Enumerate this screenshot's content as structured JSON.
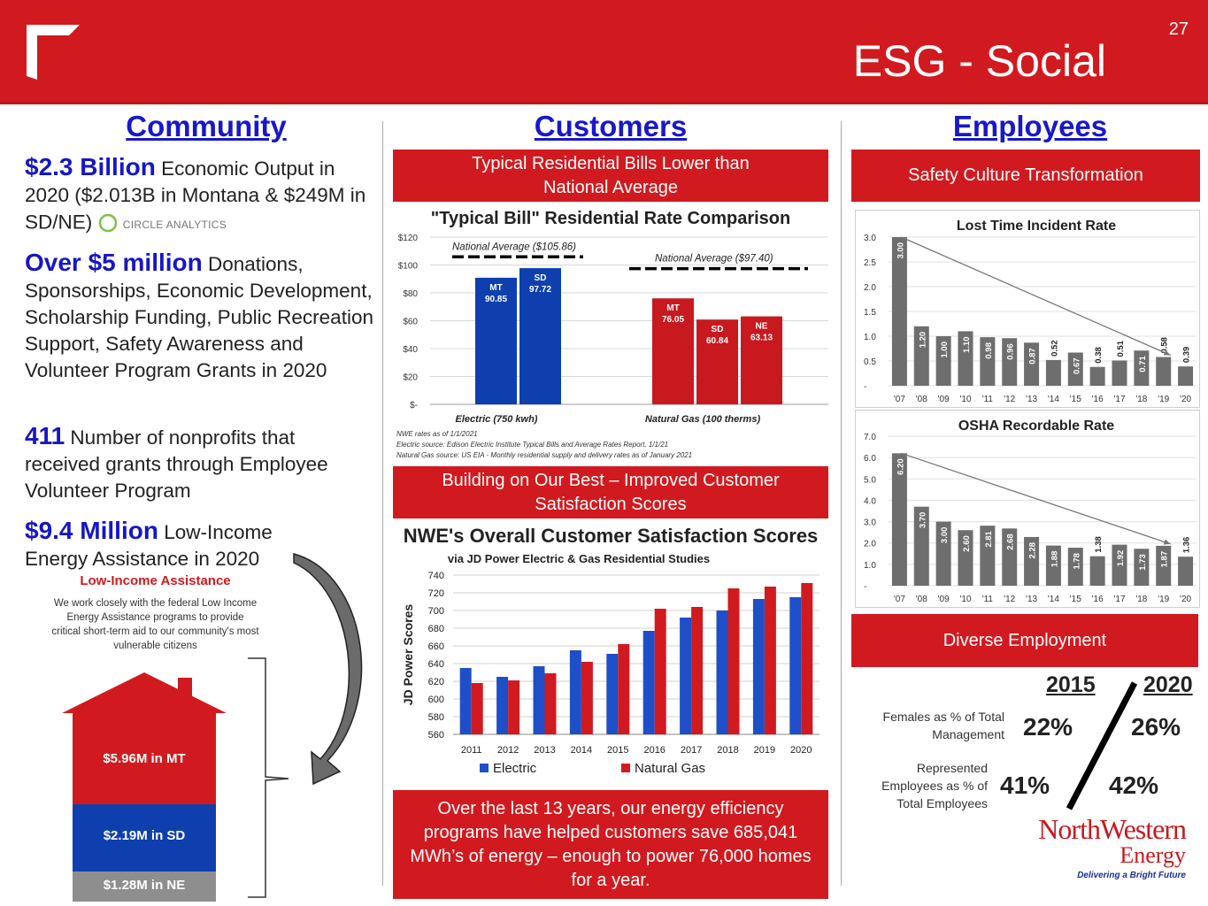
{
  "header": {
    "title": "ESG - Social",
    "page_number": "27"
  },
  "community": {
    "title": "Community",
    "items": [
      {
        "big": "$2.3 Billion",
        "text": " Economic Output in 2020 ($2.013B in Montana & $249M in SD/NE)"
      },
      {
        "big": "Over $5 million",
        "text": " Donations, Sponsorships, Economic Development, Scholarship Funding, Public Recreation Support, Safety Awareness and Volunteer Program Grants in 2020"
      },
      {
        "big": "411",
        "text": " Number of nonprofits that received grants through Employee Volunteer Program"
      },
      {
        "big": "$9.4 Million",
        "text": " Low-Income Energy Assistance in 2020"
      }
    ],
    "circle_logo_text": "CIRCLE ANALYTICS",
    "low_income": {
      "title": "Low-Income Assistance",
      "text": "We work closely with the federal Low Income Energy Assistance programs to provide critical short-term aid to our community's most vulnerable citizens",
      "mt": "$5.96M in MT",
      "sd": "$2.19M in SD",
      "ne": "$1.28M in NE"
    }
  },
  "customers": {
    "title": "Customers",
    "banner1": "Typical Residential Bills Lower than National Average",
    "banner2": "Building on Our Best – Improved Customer Satisfaction Scores",
    "banner3": "Over the last 13 years, our energy efficiency programs have helped customers save 685,041 MWh’s of energy – enough to power 76,000 homes for a year.",
    "notes": [
      "NWE rates as of 1/1/2021",
      "Electric source:  Edison Electric Institute Typical Bills and Average Rates Report, 1/1/21",
      "Natural Gas source:  US EIA - Monthly residential supply and delivery rates as of January 2021"
    ]
  },
  "employees": {
    "title": "Employees",
    "banner1": "Safety Culture Transformation",
    "banner2": "Diverse Employment",
    "diverse": {
      "year1": "2015",
      "year2": "2020",
      "row1_label": "Females as % of Total Management",
      "row1_v1": "22%",
      "row1_v2": "26%",
      "row2_label": "Represented Employees as % of Total Employees",
      "row2_v1": "41%",
      "row2_v2": "42%"
    },
    "logo": {
      "name": "NorthWestern",
      "sub": "Energy",
      "tagline": "Delivering a Bright Future"
    }
  },
  "colors": {
    "red": "#d11a1f",
    "blue": "#0f3fae",
    "gray": "#6e6e6e",
    "title_blue": "#1818c8"
  },
  "chart_data": [
    {
      "type": "bar",
      "title": "\"Typical Bill\" Residential Rate Comparison",
      "ylim": [
        0,
        120
      ],
      "yticks": [
        "$-",
        "$20",
        "$40",
        "$60",
        "$80",
        "$100",
        "$120"
      ],
      "groups": [
        {
          "name": "Electric (750 kwh)",
          "national_average": 105.86,
          "national_average_label": "National Average ($105.86)",
          "bars": [
            {
              "label": "MT",
              "value": 90.85,
              "color": "#0f3fae"
            },
            {
              "label": "SD",
              "value": 97.72,
              "color": "#0f3fae"
            }
          ]
        },
        {
          "name": "Natural Gas (100 therms)",
          "national_average": 97.4,
          "national_average_label": "National Average ($97.40)",
          "bars": [
            {
              "label": "MT",
              "value": 76.05,
              "color": "#c8191f"
            },
            {
              "label": "SD",
              "value": 60.84,
              "color": "#c8191f"
            },
            {
              "label": "NE",
              "value": 63.13,
              "color": "#c8191f"
            }
          ]
        }
      ]
    },
    {
      "type": "bar",
      "title": "NWE's Overall Customer Satisfaction Scores",
      "subtitle": "via JD Power Electric & Gas Residential Studies",
      "ylabel": "JD Power Scores",
      "ylim": [
        560,
        740
      ],
      "yticks": [
        560,
        580,
        600,
        620,
        640,
        660,
        680,
        700,
        720,
        740
      ],
      "categories": [
        "2011",
        "2012",
        "2013",
        "2014",
        "2015",
        "2016",
        "2017",
        "2018",
        "2019",
        "2020"
      ],
      "series": [
        {
          "name": "Electric",
          "color": "#1f4fc8",
          "values": [
            635,
            625,
            637,
            655,
            651,
            677,
            692,
            700,
            713,
            715
          ]
        },
        {
          "name": "Natural Gas",
          "color": "#d11a1f",
          "values": [
            618,
            621,
            629,
            642,
            662,
            702,
            704,
            725,
            727,
            731
          ]
        }
      ]
    },
    {
      "type": "bar",
      "title": "Lost Time Incident Rate",
      "ylim": [
        0,
        3.0
      ],
      "yticks": [
        "-",
        "0.5",
        "1.0",
        "1.5",
        "2.0",
        "2.5",
        "3.0"
      ],
      "categories": [
        "'07",
        "'08",
        "'09",
        "'10",
        "'11",
        "'12",
        "'13",
        "'14",
        "'15",
        "'16",
        "'17",
        "'18",
        "'19",
        "'20"
      ],
      "values": [
        3.0,
        1.2,
        1.0,
        1.1,
        0.98,
        0.96,
        0.87,
        0.52,
        0.67,
        0.38,
        0.51,
        0.71,
        0.58,
        0.39
      ],
      "trend": true
    },
    {
      "type": "bar",
      "title": "OSHA Recordable Rate",
      "ylim": [
        0,
        7.0
      ],
      "yticks": [
        "-",
        "1.0",
        "2.0",
        "3.0",
        "4.0",
        "5.0",
        "6.0",
        "7.0"
      ],
      "categories": [
        "'07",
        "'08",
        "'09",
        "'10",
        "'11",
        "'12",
        "'13",
        "'14",
        "'15",
        "'16",
        "'17",
        "'18",
        "'19",
        "'20"
      ],
      "values": [
        6.2,
        3.7,
        3.0,
        2.6,
        2.81,
        2.68,
        2.28,
        1.88,
        1.78,
        1.38,
        1.92,
        1.73,
        1.87,
        1.36
      ],
      "trend": true
    }
  ]
}
